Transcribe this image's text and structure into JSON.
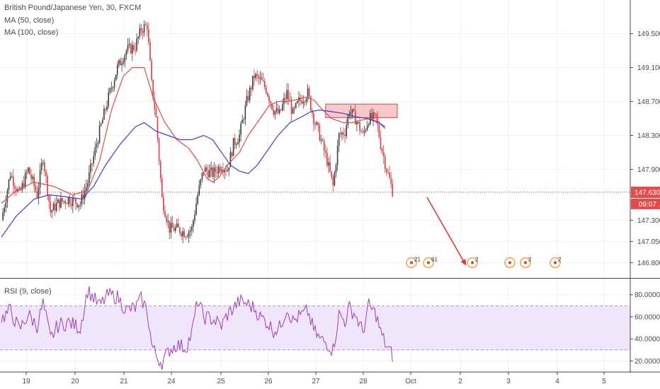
{
  "header": {
    "title": "British Pound/Japanese Yen, 30, FXCM",
    "ma50_label": "MA (50, close)",
    "ma100_label": "MA (100, close)",
    "rsi_label": "RSI (9, close)"
  },
  "colors": {
    "up": "#3c3c3c",
    "down": "#d63a3a",
    "ma50": "#e04848",
    "ma100": "#3d3dd6",
    "rsi_line": "#a03cb4",
    "rsi_band": "#efe6fb",
    "price_label_bg": "#e34a4a",
    "arrow": "#e0302e",
    "rect_fill": "#f6c8c8",
    "rect_stroke": "#c94a4a",
    "event_orange": "#f3a64b"
  },
  "chart_data": [
    {
      "type": "candlestick",
      "title": "British Pound/Japanese Yen, 30, FXCM",
      "ylim": [
        146.62,
        149.78
      ],
      "y_ticks": [
        "149.500",
        "149.100",
        "148.700",
        "148.300",
        "147.900",
        "147.300",
        "147.050",
        "146.800"
      ],
      "y_tick_values": [
        149.5,
        149.1,
        148.7,
        148.3,
        147.9,
        147.3,
        147.05,
        146.8
      ],
      "x_ticks": [
        "19",
        "20",
        "21",
        "24",
        "25",
        "26",
        "27",
        "28",
        "Oct",
        "2",
        "3",
        "4",
        "5"
      ],
      "last_price": "147.630",
      "last_price_value": 147.63,
      "countdown": "09:07",
      "anchors": [
        [
          0,
          147.3
        ],
        [
          6,
          147.85
        ],
        [
          12,
          147.6
        ],
        [
          18,
          147.9
        ],
        [
          24,
          147.6
        ],
        [
          28,
          148.05
        ],
        [
          33,
          147.4
        ],
        [
          38,
          147.5
        ],
        [
          45,
          147.55
        ],
        [
          53,
          147.5
        ],
        [
          58,
          147.75
        ],
        [
          66,
          148.35
        ],
        [
          72,
          148.75
        ],
        [
          78,
          149.1
        ],
        [
          84,
          149.3
        ],
        [
          90,
          149.35
        ],
        [
          94,
          149.55
        ],
        [
          98,
          149.6
        ],
        [
          101,
          148.9
        ],
        [
          104,
          148.5
        ],
        [
          108,
          147.55
        ],
        [
          113,
          147.2
        ],
        [
          118,
          147.2
        ],
        [
          124,
          147.15
        ],
        [
          128,
          147.2
        ],
        [
          132,
          147.6
        ],
        [
          136,
          147.9
        ],
        [
          142,
          147.85
        ],
        [
          148,
          147.95
        ],
        [
          152,
          147.9
        ],
        [
          156,
          148.2
        ],
        [
          160,
          148.3
        ],
        [
          165,
          148.7
        ],
        [
          170,
          149.0
        ],
        [
          174,
          148.95
        ],
        [
          178,
          148.85
        ],
        [
          183,
          148.6
        ],
        [
          187,
          148.55
        ],
        [
          192,
          148.8
        ],
        [
          196,
          148.55
        ],
        [
          200,
          148.7
        ],
        [
          206,
          148.8
        ],
        [
          210,
          148.5
        ],
        [
          214,
          148.3
        ],
        [
          219,
          148.0
        ],
        [
          223,
          147.7
        ],
        [
          227,
          148.3
        ],
        [
          231,
          148.35
        ],
        [
          234,
          148.6
        ],
        [
          238,
          148.5
        ],
        [
          243,
          148.3
        ],
        [
          247,
          148.5
        ],
        [
          252,
          148.5
        ],
        [
          255,
          148.2
        ],
        [
          259,
          147.9
        ],
        [
          263,
          147.65
        ]
      ],
      "ma50": [
        [
          0,
          147.5
        ],
        [
          10,
          147.65
        ],
        [
          22,
          147.75
        ],
        [
          35,
          147.7
        ],
        [
          48,
          147.6
        ],
        [
          58,
          147.65
        ],
        [
          66,
          148.0
        ],
        [
          74,
          148.6
        ],
        [
          82,
          149.0
        ],
        [
          88,
          149.1
        ],
        [
          96,
          149.1
        ],
        [
          102,
          148.75
        ],
        [
          110,
          148.45
        ],
        [
          118,
          148.25
        ],
        [
          126,
          148.15
        ],
        [
          132,
          148.0
        ],
        [
          138,
          147.8
        ],
        [
          142,
          147.75
        ],
        [
          146,
          147.8
        ],
        [
          152,
          147.95
        ],
        [
          160,
          148.1
        ],
        [
          166,
          148.3
        ],
        [
          174,
          148.5
        ],
        [
          180,
          148.65
        ],
        [
          186,
          148.7
        ],
        [
          192,
          148.7
        ],
        [
          198,
          148.72
        ],
        [
          204,
          148.75
        ],
        [
          210,
          148.72
        ],
        [
          216,
          148.6
        ],
        [
          222,
          148.5
        ],
        [
          230,
          148.45
        ],
        [
          236,
          148.45
        ],
        [
          242,
          148.48
        ],
        [
          248,
          148.5
        ],
        [
          254,
          148.45
        ],
        [
          258,
          148.38
        ]
      ],
      "ma100": [
        [
          0,
          147.1
        ],
        [
          10,
          147.35
        ],
        [
          22,
          147.55
        ],
        [
          32,
          147.6
        ],
        [
          42,
          147.58
        ],
        [
          54,
          147.55
        ],
        [
          62,
          147.7
        ],
        [
          70,
          147.95
        ],
        [
          80,
          148.2
        ],
        [
          90,
          148.4
        ],
        [
          96,
          148.45
        ],
        [
          104,
          148.35
        ],
        [
          112,
          148.3
        ],
        [
          120,
          148.25
        ],
        [
          128,
          148.25
        ],
        [
          136,
          148.3
        ],
        [
          142,
          148.25
        ],
        [
          148,
          148.1
        ],
        [
          154,
          147.95
        ],
        [
          160,
          147.88
        ],
        [
          166,
          147.85
        ],
        [
          172,
          147.95
        ],
        [
          178,
          148.1
        ],
        [
          186,
          148.3
        ],
        [
          194,
          148.45
        ],
        [
          202,
          148.52
        ],
        [
          208,
          148.58
        ],
        [
          214,
          148.6
        ],
        [
          222,
          148.58
        ],
        [
          230,
          148.56
        ],
        [
          238,
          148.52
        ],
        [
          246,
          148.5
        ],
        [
          254,
          148.45
        ],
        [
          258,
          148.4
        ]
      ],
      "zone": {
        "price_top": 148.67,
        "price_bottom": 148.51
      },
      "projection": {
        "from_price": 147.57,
        "to_price": 146.77
      }
    },
    {
      "type": "line",
      "title": "RSI (9, close)",
      "ylim": [
        10,
        92
      ],
      "y_ticks": [
        "80.0000",
        "60.0000",
        "40.0000",
        "20.0000"
      ],
      "y_tick_values": [
        80,
        60,
        40,
        20
      ],
      "bands": [
        30,
        70
      ],
      "anchors": [
        [
          0,
          58
        ],
        [
          6,
          66
        ],
        [
          12,
          48
        ],
        [
          18,
          62
        ],
        [
          24,
          52
        ],
        [
          28,
          72
        ],
        [
          33,
          40
        ],
        [
          38,
          52
        ],
        [
          45,
          55
        ],
        [
          53,
          50
        ],
        [
          58,
          84
        ],
        [
          66,
          70
        ],
        [
          72,
          80
        ],
        [
          78,
          78
        ],
        [
          84,
          66
        ],
        [
          90,
          68
        ],
        [
          94,
          76
        ],
        [
          98,
          66
        ],
        [
          101,
          35
        ],
        [
          104,
          25
        ],
        [
          108,
          18
        ],
        [
          113,
          30
        ],
        [
          118,
          35
        ],
        [
          124,
          32
        ],
        [
          128,
          45
        ],
        [
          132,
          75
        ],
        [
          136,
          60
        ],
        [
          142,
          58
        ],
        [
          148,
          52
        ],
        [
          152,
          62
        ],
        [
          156,
          68
        ],
        [
          160,
          74
        ],
        [
          165,
          72
        ],
        [
          170,
          68
        ],
        [
          174,
          60
        ],
        [
          178,
          56
        ],
        [
          183,
          48
        ],
        [
          187,
          50
        ],
        [
          192,
          68
        ],
        [
          196,
          56
        ],
        [
          200,
          60
        ],
        [
          206,
          65
        ],
        [
          210,
          48
        ],
        [
          214,
          40
        ],
        [
          219,
          36
        ],
        [
          223,
          30
        ],
        [
          227,
          62
        ],
        [
          231,
          56
        ],
        [
          234,
          68
        ],
        [
          238,
          62
        ],
        [
          243,
          46
        ],
        [
          247,
          70
        ],
        [
          252,
          62
        ],
        [
          255,
          46
        ],
        [
          259,
          33
        ],
        [
          263,
          25
        ]
      ]
    }
  ]
}
